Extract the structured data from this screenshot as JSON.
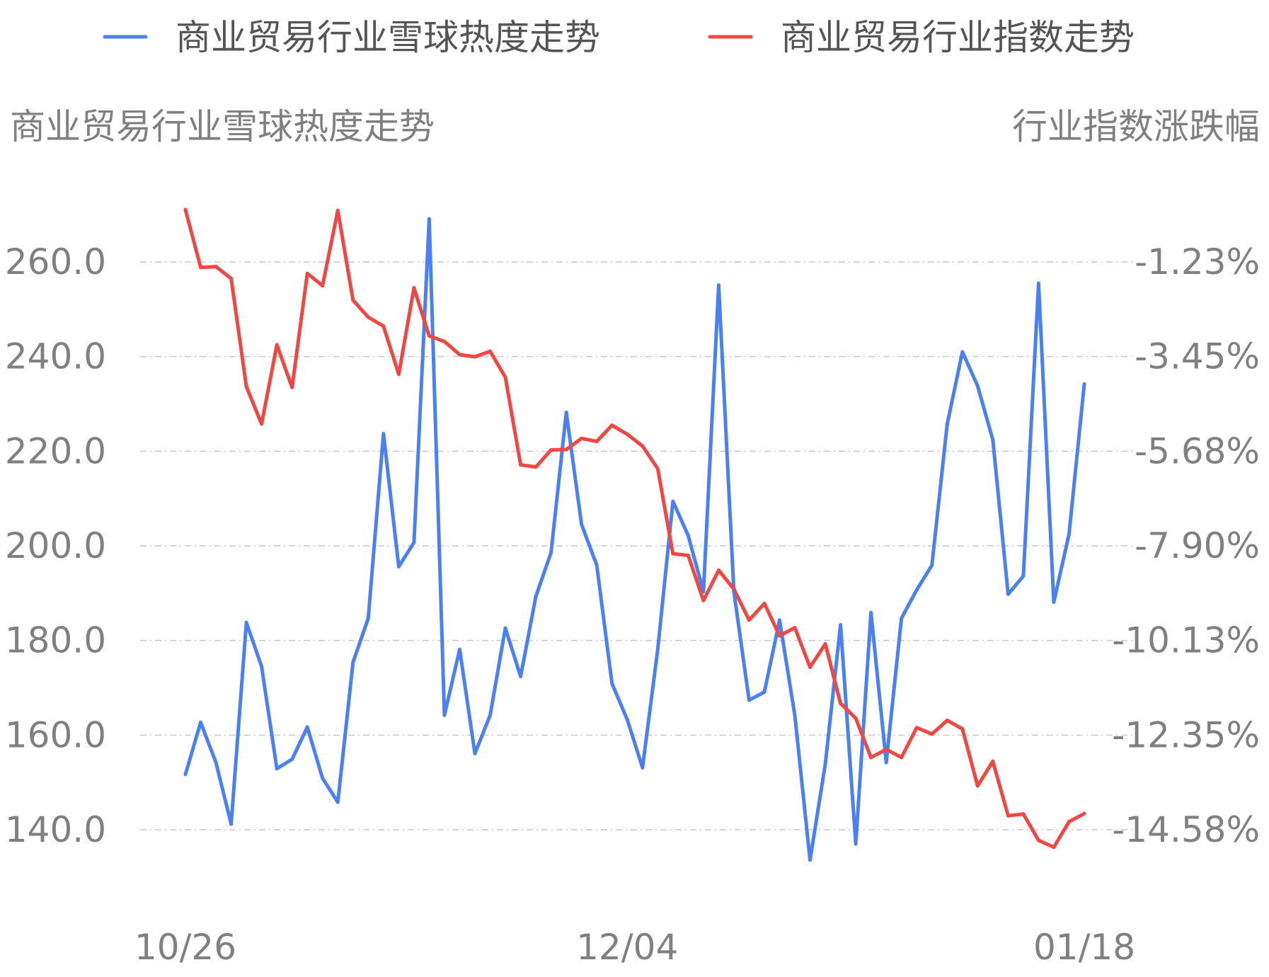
{
  "chart_data": {
    "type": "line",
    "legend_position": "top",
    "grid": true,
    "left_axis": {
      "title": "商业贸易行业雪球热度走势",
      "ylim": [
        130,
        270
      ],
      "ticks": [
        "260.0",
        "240.0",
        "220.0",
        "200.0",
        "180.0",
        "160.0",
        "140.0"
      ],
      "tick_values": [
        260,
        240,
        220,
        200,
        180,
        160,
        140
      ]
    },
    "right_axis": {
      "title": "行业指数涨跌幅",
      "ticks": [
        "-1.23%",
        "-3.45%",
        "-5.68%",
        "-7.90%",
        "-10.13%",
        "-12.35%",
        "-14.58%"
      ]
    },
    "x_axis": {
      "tick_labels": [
        "10/26",
        "12/04",
        "01/18"
      ],
      "tick_indices": [
        0,
        29,
        59
      ]
    },
    "series": [
      {
        "name": "商业贸易行业雪球热度走势",
        "color": "#4a80f5",
        "axis": "left",
        "values": [
          151.7,
          162.7,
          154.2,
          141.2,
          183.8,
          174.5,
          152.9,
          154.9,
          161.7,
          150.9,
          145.8,
          175.4,
          184.7,
          223.7,
          195.6,
          200.7,
          269.1,
          164.2,
          178.1,
          156.1,
          164.2,
          182.6,
          172.4,
          189.3,
          198.6,
          228.2,
          204.5,
          195.9,
          170.9,
          163.3,
          153.1,
          178.1,
          209.4,
          202.2,
          190.3,
          255.1,
          190.3,
          167.4,
          169.1,
          184.3,
          164.2,
          133.6,
          153.9,
          183.3,
          137.0,
          185.9,
          154.2,
          184.7,
          190.7,
          195.9,
          225.7,
          241.0,
          233.8,
          222.4,
          189.8,
          193.6,
          255.5,
          188.1,
          202.5,
          234.2
        ]
      },
      {
        "name": "商业贸易行业指数走势",
        "color": "#f24640",
        "axis": "right",
        "values": [
          0.0,
          -1.36,
          -1.34,
          -1.62,
          -4.16,
          -5.04,
          -3.18,
          -4.18,
          -1.5,
          -1.79,
          -0.02,
          -2.13,
          -2.53,
          -2.74,
          -3.87,
          -1.84,
          -2.97,
          -3.1,
          -3.41,
          -3.46,
          -3.33,
          -3.94,
          -6.0,
          -6.05,
          -5.65,
          -5.64,
          -5.38,
          -5.45,
          -5.07,
          -5.28,
          -5.56,
          -6.09,
          -8.09,
          -8.13,
          -9.19,
          -8.48,
          -8.92,
          -9.65,
          -9.26,
          -10.02,
          -9.83,
          -10.76,
          -10.21,
          -11.61,
          -11.96,
          -12.88,
          -12.69,
          -12.88,
          -12.18,
          -12.33,
          -12.01,
          -12.21,
          -13.55,
          -12.97,
          -14.25,
          -14.21,
          -14.83,
          -14.99,
          -14.39,
          -14.2
        ]
      }
    ]
  }
}
